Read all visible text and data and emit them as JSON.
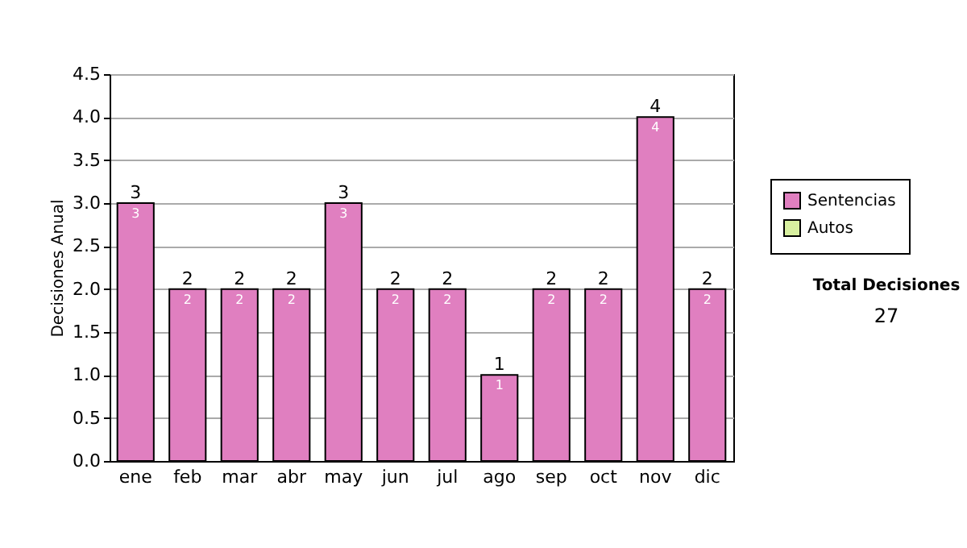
{
  "chart_data": {
    "type": "bar",
    "stacked": true,
    "ylabel": "Decisiones Anual",
    "categories": [
      "ene",
      "feb",
      "mar",
      "abr",
      "may",
      "jun",
      "jul",
      "ago",
      "sep",
      "oct",
      "nov",
      "dic"
    ],
    "series": [
      {
        "name": "Sentencias",
        "color": "#e07fc0",
        "values": [
          3,
          2,
          2,
          2,
          3,
          2,
          2,
          1,
          2,
          2,
          4,
          2
        ],
        "value_labels": [
          "3",
          "2",
          "2",
          "2",
          "3",
          "2",
          "2",
          "1",
          "2",
          "2",
          "4",
          "2"
        ]
      },
      {
        "name": "Autos",
        "color": "#d8f0a0",
        "values": [
          null,
          null,
          null,
          null,
          null,
          null,
          null,
          null,
          null,
          null,
          null,
          null
        ]
      }
    ],
    "totals": [
      "3",
      "2",
      "2",
      "2",
      "3",
      "2",
      "2",
      "1",
      "2",
      "2",
      "4",
      "2"
    ],
    "ylim": [
      0,
      4.5
    ],
    "yticks": [
      {
        "value": 0,
        "label": "0.0"
      },
      0.5,
      {
        "value": 1,
        "label": "1.0"
      },
      1.5,
      {
        "value": 2,
        "label": "2.0"
      },
      2.5,
      {
        "value": 3,
        "label": "3.0"
      },
      3.5,
      {
        "value": 4,
        "label": "4.0"
      },
      4.5
    ],
    "grid": "y",
    "legend": "right",
    "annotations": [
      "Total Decisiones",
      "27"
    ]
  }
}
